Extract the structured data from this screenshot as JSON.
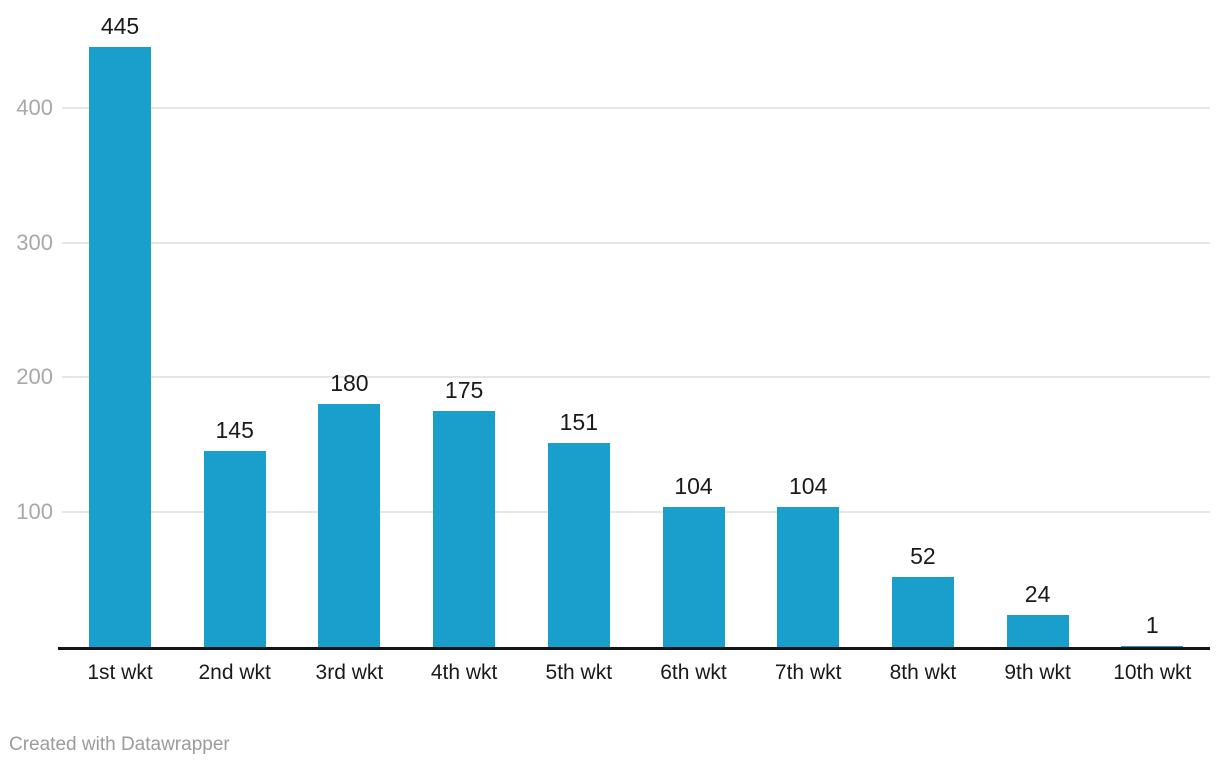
{
  "chart_data": {
    "type": "bar",
    "categories": [
      "1st wkt",
      "2nd wkt",
      "3rd wkt",
      "4th wkt",
      "5th wkt",
      "6th wkt",
      "7th wkt",
      "8th wkt",
      "9th wkt",
      "10th wkt"
    ],
    "values": [
      445,
      145,
      180,
      175,
      151,
      104,
      104,
      52,
      24,
      1
    ],
    "title": "",
    "xlabel": "",
    "ylabel": "",
    "ylim": [
      0,
      445
    ],
    "yticks": [
      100,
      200,
      300,
      400
    ],
    "grid": true,
    "legend": "none",
    "bar_color": "#1a9ecc",
    "value_label_color": "#1a1a1a",
    "axis_label_color": "#1a1a1a",
    "tick_label_color": "#a8a8a8",
    "gridline_color": "#e6e6e6",
    "axis_line_color": "#141414"
  },
  "footer": {
    "credit": "Created with Datawrapper"
  }
}
